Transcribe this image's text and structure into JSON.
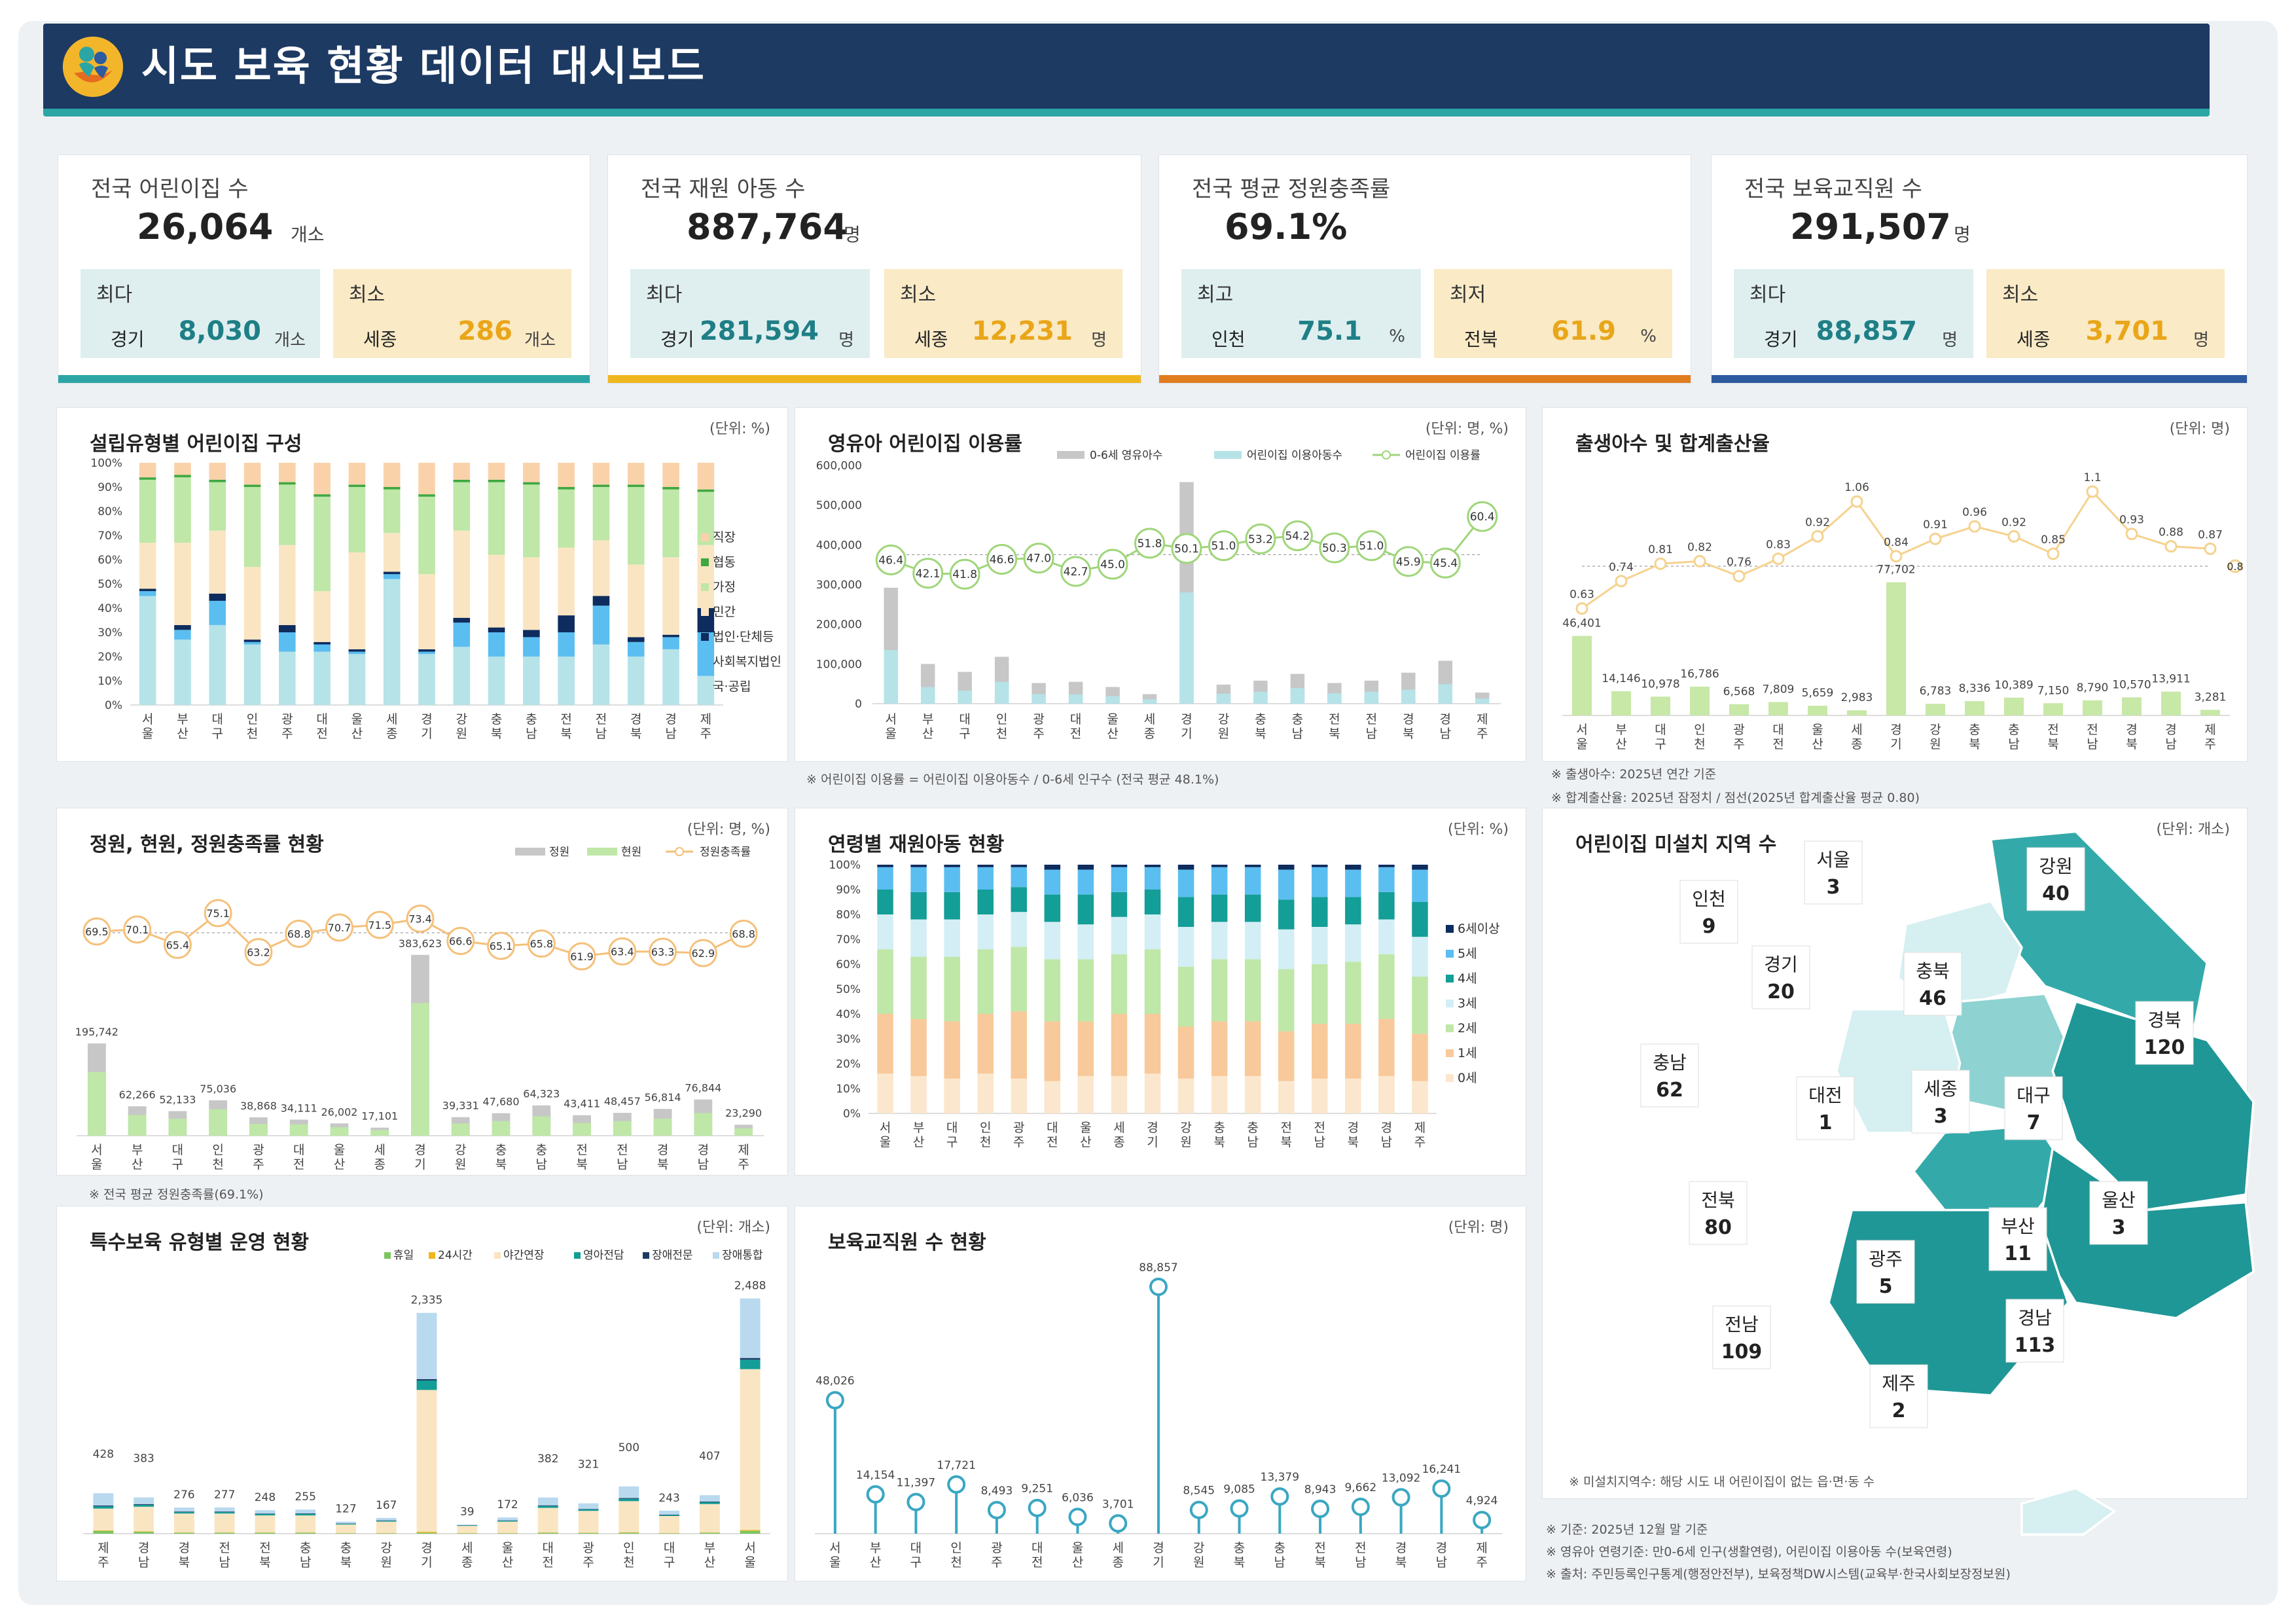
{
  "header": {
    "title": "시도 보육 현황 데이터 대시보드"
  },
  "kpis": [
    {
      "title": "전국 어린이집 수",
      "value": "26,064",
      "unit": "개소",
      "max_label": "최다",
      "max_region": "경기",
      "max_value": "8,030",
      "max_unit": "개소",
      "min_label": "최소",
      "min_region": "세종",
      "min_value": "286",
      "min_unit": "개소",
      "accent": "#2ba6a5"
    },
    {
      "title": "전국 재원 아동 수",
      "value": "887,764",
      "unit": "명",
      "max_label": "최다",
      "max_region": "경기",
      "max_value": "281,594",
      "max_unit": "명",
      "min_label": "최소",
      "min_region": "세종",
      "min_value": "12,231",
      "min_unit": "명",
      "accent": "#efb71f"
    },
    {
      "title": "전국 평균 정원충족률",
      "value": "69.1%",
      "unit": "",
      "max_label": "최고",
      "max_region": "인천",
      "max_value": "75.1",
      "max_unit": "%",
      "min_label": "최저",
      "min_region": "전북",
      "min_value": "61.9",
      "min_unit": "%",
      "accent": "#e07e1f"
    },
    {
      "title": "전국 보육교직원 수",
      "value": "291,507",
      "unit": "명",
      "max_label": "최다",
      "max_region": "경기",
      "max_value": "88,857",
      "max_unit": "명",
      "min_label": "최소",
      "min_region": "세종",
      "min_value": "3,701",
      "min_unit": "명",
      "accent": "#2e5aa0"
    }
  ],
  "regions": [
    "서울",
    "부산",
    "대구",
    "인천",
    "광주",
    "대전",
    "울산",
    "세종",
    "경기",
    "강원",
    "충북",
    "충남",
    "전북",
    "전남",
    "경북",
    "경남",
    "제주"
  ],
  "panels": {
    "type": {
      "title": "설립유형별 어린이집 구성",
      "unit": "(단위: %)"
    },
    "infant": {
      "title": "영유아 어린이집 이용률",
      "unit": "(단위: 명, %)",
      "note": "※ 어린이집 이용률 = 어린이집 이용아동수 / 0-6세 인구수 (전국 평균 48.1%)"
    },
    "birth": {
      "title": "출생아수 및 합계출산율",
      "unit": "(단위: 명)",
      "note1": "※ 출생아수: 2025년 연간 기준",
      "note2": "※ 합계출산율: 2025년 잠정치 / 점선(2025년 합계출산율 평균 0.80)"
    },
    "capacity": {
      "title": "정원, 현원, 정원충족률 현황",
      "unit": "(단위: 명, %)",
      "note": "※ 전국 평균 정원충족률(69.1%)"
    },
    "age": {
      "title": "연령별 재원아동 현황",
      "unit": "(단위: %)"
    },
    "map": {
      "title": "어린이집 미설치 지역 수",
      "unit": "(단위: 개소)",
      "note": "※ 미설치지역수: 해당 시도 내 어린이집이 없는 읍·면·동 수"
    },
    "special": {
      "title": "특수보육 유형별 운영 현황",
      "unit": "(단위: 개소)"
    },
    "staff": {
      "title": "보육교직원 수 현황",
      "unit": "(단위: 명)"
    }
  },
  "footnotes": [
    "※ 기준: 2025년 12월 말 기준",
    "※ 영유아 연령기준: 만0-6세 인구(생활연령), 어린이집 이용아동 수(보육연령)",
    "※ 출처: 주민등록인구통계(행정안전부), 보육정책DW시스템(교육부·한국사회보장정보원)"
  ],
  "map_labels": [
    {
      "name": "서울",
      "value": "3"
    },
    {
      "name": "인천",
      "value": "9"
    },
    {
      "name": "경기",
      "value": "20"
    },
    {
      "name": "강원",
      "value": "40"
    },
    {
      "name": "충북",
      "value": "46"
    },
    {
      "name": "충남",
      "value": "62"
    },
    {
      "name": "경북",
      "value": "120"
    },
    {
      "name": "대전",
      "value": "1"
    },
    {
      "name": "세종",
      "value": "3"
    },
    {
      "name": "대구",
      "value": "7"
    },
    {
      "name": "전북",
      "value": "80"
    },
    {
      "name": "울산",
      "value": "3"
    },
    {
      "name": "광주",
      "value": "5"
    },
    {
      "name": "부산",
      "value": "11"
    },
    {
      "name": "전남",
      "value": "109"
    },
    {
      "name": "경남",
      "value": "113"
    },
    {
      "name": "제주",
      "value": "2"
    }
  ],
  "chart_data": [
    {
      "id": "type",
      "type": "bar",
      "stacked": true,
      "title": "설립유형별 어린이집 구성",
      "ylim": [
        0,
        100
      ],
      "yticks": [
        "0%",
        "10%",
        "20%",
        "30%",
        "40%",
        "50%",
        "60%",
        "70%",
        "80%",
        "90%",
        "100%"
      ],
      "categories": [
        "서울",
        "부산",
        "대구",
        "인천",
        "광주",
        "대전",
        "울산",
        "세종",
        "경기",
        "강원",
        "충북",
        "충남",
        "전북",
        "전남",
        "경북",
        "경남",
        "제주"
      ],
      "series": [
        {
          "name": "국·공립",
          "color": "#b5e3e8",
          "values": [
            45,
            27,
            33,
            25,
            22,
            22,
            21,
            52,
            21,
            24,
            20,
            20,
            20,
            25,
            20,
            23,
            12
          ]
        },
        {
          "name": "사회복지법인",
          "color": "#5bbef0",
          "values": [
            2,
            4,
            10,
            1,
            8,
            3,
            1,
            2,
            1,
            10,
            10,
            8,
            10,
            16,
            6,
            5,
            18
          ]
        },
        {
          "name": "법인·단체등",
          "color": "#0e2c5e",
          "values": [
            1,
            2,
            3,
            1,
            3,
            1,
            1,
            1,
            1,
            2,
            2,
            3,
            7,
            4,
            2,
            1,
            10
          ]
        },
        {
          "name": "민간",
          "color": "#fae5c2",
          "values": [
            19,
            34,
            26,
            30,
            33,
            21,
            40,
            16,
            31,
            36,
            30,
            30,
            28,
            23,
            30,
            32,
            26
          ]
        },
        {
          "name": "가정",
          "color": "#bfe7a8",
          "values": [
            26,
            27,
            20,
            33,
            25,
            39,
            27,
            18,
            32,
            20,
            30,
            30,
            24,
            22,
            32,
            28,
            22
          ]
        },
        {
          "name": "협동",
          "color": "#3fa83f",
          "values": [
            1,
            1,
            1,
            1,
            1,
            1,
            1,
            1,
            1,
            1,
            1,
            1,
            1,
            1,
            1,
            1,
            1
          ]
        },
        {
          "name": "직장",
          "color": "#fad2aa",
          "values": [
            6,
            5,
            7,
            9,
            8,
            13,
            9,
            10,
            13,
            7,
            7,
            8,
            10,
            9,
            9,
            10,
            11
          ]
        }
      ]
    },
    {
      "id": "infant",
      "type": "bar+line",
      "title": "영유아 어린이집 이용률",
      "ylim": [
        0,
        600000
      ],
      "yticks": [
        "0",
        "100,000",
        "200,000",
        "300,000",
        "400,000",
        "500,000",
        "600,000"
      ],
      "avg": 48.1,
      "categories": [
        "서울",
        "부산",
        "대구",
        "인천",
        "광주",
        "대전",
        "울산",
        "세종",
        "경기",
        "강원",
        "충북",
        "충남",
        "전북",
        "전남",
        "경북",
        "경남",
        "제주"
      ],
      "series": [
        {
          "name": "0-6세 영유아수",
          "color": "#c7c7c7",
          "values": [
            292000,
            100000,
            80000,
            118000,
            52000,
            55000,
            42000,
            24000,
            558000,
            48000,
            58000,
            75000,
            52000,
            58000,
            78000,
            108000,
            28000
          ]
        },
        {
          "name": "어린이집 이용아동수",
          "color": "#b5e3e8",
          "values": [
            135000,
            42000,
            33000,
            55000,
            24000,
            23000,
            19000,
            11000,
            280000,
            25000,
            30000,
            39000,
            26000,
            30000,
            35000,
            49000,
            13000
          ]
        },
        {
          "name": "어린이집 이용률",
          "color": "#9fd67a",
          "values": [
            46.4,
            42.1,
            41.8,
            46.6,
            47.0,
            42.7,
            45.0,
            51.8,
            50.1,
            51.0,
            53.2,
            54.2,
            50.3,
            51.0,
            45.9,
            45.4,
            60.4
          ]
        }
      ]
    },
    {
      "id": "birth",
      "type": "bar+line",
      "title": "출생아수 및 합계출산율",
      "categories": [
        "서울",
        "부산",
        "대구",
        "인천",
        "광주",
        "대전",
        "울산",
        "세종",
        "경기",
        "강원",
        "충북",
        "충남",
        "전북",
        "전남",
        "경북",
        "경남",
        "제주"
      ],
      "series": [
        {
          "name": "출생아수",
          "color": "#c7e8a6",
          "values": [
            46401,
            14146,
            10978,
            16786,
            6568,
            7809,
            5659,
            2983,
            77702,
            6783,
            8336,
            10389,
            7150,
            8790,
            10570,
            13911,
            3281
          ]
        },
        {
          "name": "합계출산율",
          "color": "#f5d28e",
          "values": [
            0.63,
            0.74,
            0.81,
            0.82,
            0.76,
            0.83,
            0.92,
            1.06,
            0.84,
            0.91,
            0.96,
            0.92,
            0.85,
            1.1,
            0.93,
            0.88,
            0.87
          ]
        }
      ],
      "avg": 0.8,
      "avg_label": "0.8"
    },
    {
      "id": "capacity",
      "type": "bar+line",
      "title": "정원, 현원, 정원충족률 현황",
      "categories": [
        "서울",
        "부산",
        "대구",
        "인천",
        "광주",
        "대전",
        "울산",
        "세종",
        "경기",
        "강원",
        "충북",
        "충남",
        "전북",
        "전남",
        "경북",
        "경남",
        "제주"
      ],
      "series": [
        {
          "name": "정원",
          "color": "#c7c7c7",
          "values": [
            195742,
            62266,
            52133,
            75036,
            38868,
            34111,
            26002,
            17101,
            383623,
            39331,
            47680,
            64323,
            43411,
            48457,
            56814,
            76844,
            23290
          ]
        },
        {
          "name": "현원",
          "color": "#bfe7a8",
          "values": [
            135000,
            44000,
            36000,
            56000,
            25000,
            24000,
            18000,
            12000,
            281594,
            26000,
            31000,
            41000,
            27000,
            31000,
            36000,
            48000,
            15500
          ]
        },
        {
          "name": "정원충족률",
          "color": "#f5c07a",
          "values": [
            69.5,
            70.1,
            65.4,
            75.1,
            63.2,
            68.8,
            70.7,
            71.5,
            73.4,
            66.6,
            65.1,
            65.8,
            61.9,
            63.4,
            63.3,
            62.9,
            68.8
          ]
        }
      ],
      "avg": 69.1
    },
    {
      "id": "age",
      "type": "bar",
      "stacked": true,
      "title": "연령별 재원아동 현황",
      "ylim": [
        0,
        100
      ],
      "yticks": [
        "0%",
        "10%",
        "20%",
        "30%",
        "40%",
        "50%",
        "60%",
        "70%",
        "80%",
        "90%",
        "100%"
      ],
      "categories": [
        "서울",
        "부산",
        "대구",
        "인천",
        "광주",
        "대전",
        "울산",
        "세종",
        "경기",
        "강원",
        "충북",
        "충남",
        "전북",
        "전남",
        "경북",
        "경남",
        "제주"
      ],
      "series": [
        {
          "name": "0세",
          "color": "#fbe7cd",
          "values": [
            16,
            15,
            14,
            16,
            14,
            13,
            15,
            15,
            16,
            14,
            15,
            15,
            13,
            14,
            14,
            15,
            13
          ]
        },
        {
          "name": "1세",
          "color": "#f8c99a",
          "values": [
            24,
            23,
            23,
            24,
            27,
            24,
            22,
            25,
            24,
            21,
            22,
            22,
            20,
            22,
            22,
            23,
            19
          ]
        },
        {
          "name": "2세",
          "color": "#bfe7a8",
          "values": [
            26,
            25,
            26,
            26,
            26,
            25,
            25,
            24,
            26,
            24,
            25,
            25,
            25,
            24,
            25,
            26,
            23
          ]
        },
        {
          "name": "3세",
          "color": "#d4eef5",
          "values": [
            14,
            15,
            15,
            14,
            14,
            15,
            14,
            15,
            14,
            16,
            15,
            15,
            16,
            15,
            15,
            14,
            16
          ]
        },
        {
          "name": "4세",
          "color": "#139e97",
          "values": [
            10,
            11,
            11,
            10,
            10,
            11,
            12,
            10,
            10,
            12,
            11,
            11,
            12,
            12,
            11,
            11,
            14
          ]
        },
        {
          "name": "5세",
          "color": "#5bbef0",
          "values": [
            9,
            10,
            10,
            9,
            8,
            10,
            10,
            10,
            9,
            11,
            11,
            11,
            12,
            12,
            11,
            10,
            13
          ]
        },
        {
          "name": "6세이상",
          "color": "#0e2c5e",
          "values": [
            1,
            1,
            1,
            1,
            1,
            2,
            2,
            1,
            1,
            2,
            1,
            1,
            2,
            1,
            2,
            1,
            2
          ]
        }
      ]
    },
    {
      "id": "special",
      "type": "bar",
      "stacked": true,
      "title": "특수보육 유형별 운영 현황",
      "categories": [
        "제주",
        "경남",
        "경북",
        "전남",
        "전북",
        "충남",
        "충북",
        "강원",
        "경기",
        "세종",
        "울산",
        "대전",
        "광주",
        "인천",
        "대구",
        "부산",
        "서울"
      ],
      "totals": [
        428,
        383,
        276,
        277,
        248,
        255,
        127,
        167,
        2335,
        39,
        172,
        382,
        321,
        500,
        243,
        407,
        2488
      ],
      "series": [
        {
          "name": "휴일",
          "color": "#7cc560",
          "values": [
            30,
            20,
            10,
            10,
            10,
            10,
            5,
            5,
            10,
            2,
            5,
            10,
            8,
            10,
            5,
            10,
            30
          ]
        },
        {
          "name": "24시간",
          "color": "#efb71f",
          "values": [
            5,
            5,
            3,
            3,
            3,
            3,
            2,
            2,
            10,
            1,
            2,
            3,
            3,
            4,
            2,
            3,
            10
          ]
        },
        {
          "name": "야간연장",
          "color": "#fae5c2",
          "values": [
            230,
            260,
            200,
            200,
            180,
            180,
            90,
            120,
            1500,
            30,
            120,
            260,
            230,
            330,
            180,
            300,
            1700
          ]
        },
        {
          "name": "영아전담",
          "color": "#139e97",
          "values": [
            25,
            20,
            15,
            15,
            15,
            15,
            8,
            10,
            100,
            2,
            10,
            20,
            15,
            25,
            10,
            20,
            100
          ]
        },
        {
          "name": "장애전문",
          "color": "#1d3a63",
          "values": [
            8,
            8,
            6,
            6,
            5,
            6,
            3,
            4,
            15,
            1,
            4,
            7,
            5,
            8,
            5,
            7,
            18
          ]
        },
        {
          "name": "장애통합",
          "color": "#b9d9ef",
          "values": [
            130,
            70,
            42,
            43,
            35,
            41,
            19,
            26,
            700,
            3,
            31,
            82,
            60,
            123,
            41,
            67,
            630
          ]
        }
      ]
    },
    {
      "id": "staff",
      "type": "lollipop",
      "title": "보육교직원 수 현황",
      "categories": [
        "서울",
        "부산",
        "대구",
        "인천",
        "광주",
        "대전",
        "울산",
        "세종",
        "경기",
        "강원",
        "충북",
        "충남",
        "전북",
        "전남",
        "경북",
        "경남",
        "제주"
      ],
      "values": [
        48026,
        14154,
        11397,
        17721,
        8493,
        9251,
        6036,
        3701,
        88857,
        8545,
        9085,
        13379,
        8943,
        9662,
        13092,
        16241,
        4924
      ],
      "labels": [
        "48,026",
        "14,154",
        "11,397",
        "17,721",
        "8,493",
        "9,251",
        "6,036",
        "3,701",
        "88,857",
        "8,545",
        "9,085",
        "13,379",
        "8,943",
        "9,662",
        "13,092",
        "16,241",
        "4,924"
      ]
    }
  ]
}
